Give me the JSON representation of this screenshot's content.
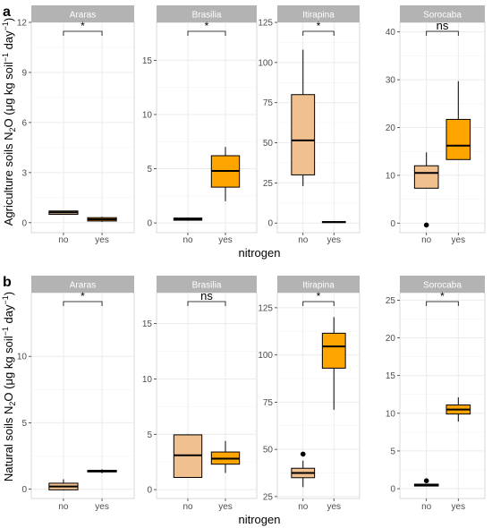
{
  "figure": {
    "x_title": "nitrogen",
    "fill_colors": {
      "no": "#f0c08f",
      "yes": "#ffa500"
    },
    "strip_color": "#b3b3b3",
    "grid_color": "#ebebeb"
  },
  "chart_data": [
    {
      "type": "box",
      "panel_label": "a",
      "ylabel_prefix": "Agriculture soils N",
      "ylabel_unit_text": " (μg kg soil",
      "ylabel_day": " day",
      "xlabel": "nitrogen",
      "categories": [
        "no",
        "yes"
      ],
      "facets": [
        {
          "name": "Araras",
          "ylim": [
            -0.6,
            12
          ],
          "yticks": [
            0,
            3,
            6,
            9,
            12
          ],
          "ytick_labels": [
            "0",
            "3",
            "6",
            "9",
            "12"
          ],
          "sig": "*",
          "boxes": [
            {
              "category": "no",
              "q1": 0.5,
              "median": 0.62,
              "q3": 0.7,
              "whisker_low": 0.5,
              "whisker_high": 0.7,
              "outliers": []
            },
            {
              "category": "yes",
              "q1": 0.1,
              "median": 0.2,
              "q3": 0.3,
              "whisker_low": 0.05,
              "whisker_high": 0.35,
              "outliers": []
            }
          ]
        },
        {
          "name": "Brasilia",
          "ylim": [
            -0.9,
            18.5
          ],
          "yticks": [
            0,
            5,
            10,
            15
          ],
          "ytick_labels": [
            "0",
            "5",
            "10",
            "15"
          ],
          "sig": "*",
          "boxes": [
            {
              "category": "no",
              "q1": 0.25,
              "median": 0.35,
              "q3": 0.45,
              "whisker_low": 0.2,
              "whisker_high": 0.5,
              "outliers": []
            },
            {
              "category": "yes",
              "q1": 3.3,
              "median": 4.8,
              "q3": 6.2,
              "whisker_low": 2.0,
              "whisker_high": 7.0,
              "outliers": []
            }
          ]
        },
        {
          "name": "Itirapina",
          "ylim": [
            -6,
            125
          ],
          "yticks": [
            0,
            25,
            50,
            75,
            100,
            125
          ],
          "ytick_labels": [
            "0",
            "25",
            "50",
            "75",
            "100",
            "125"
          ],
          "sig": "*",
          "boxes": [
            {
              "category": "no",
              "q1": 30,
              "median": 51.5,
              "q3": 80,
              "whisker_low": 23,
              "whisker_high": 108,
              "outliers": []
            },
            {
              "category": "yes",
              "q1": 0.3,
              "median": 0.6,
              "q3": 0.9,
              "whisker_low": 0.2,
              "whisker_high": 1.0,
              "outliers": []
            }
          ]
        },
        {
          "name": "Sorocaba",
          "ylim": [
            -2,
            42
          ],
          "yticks": [
            0,
            10,
            20,
            30,
            40
          ],
          "ytick_labels": [
            "0",
            "10",
            "20",
            "30",
            "40"
          ],
          "sig": "ns",
          "boxes": [
            {
              "category": "no",
              "q1": 7.3,
              "median": 10.5,
              "q3": 12,
              "whisker_low": 7.3,
              "whisker_high": 14.8,
              "outliers": [
                -0.4
              ]
            },
            {
              "category": "yes",
              "q1": 13.3,
              "median": 16.2,
              "q3": 21.7,
              "whisker_low": 13.3,
              "whisker_high": 29.7,
              "outliers": []
            }
          ]
        }
      ]
    },
    {
      "type": "box",
      "panel_label": "b",
      "ylabel_prefix": "Natural soils N",
      "ylabel_unit_text": " (μg kg soil",
      "ylabel_day": " day",
      "xlabel": "nitrogen",
      "categories": [
        "no",
        "yes"
      ],
      "facets": [
        {
          "name": "Araras",
          "ylim": [
            -0.7,
            14.8
          ],
          "yticks": [
            0,
            5,
            10
          ],
          "ytick_labels": [
            "0",
            "5",
            "10"
          ],
          "sig": "*",
          "boxes": [
            {
              "category": "no",
              "q1": -0.05,
              "median": 0.2,
              "q3": 0.45,
              "whisker_low": -0.1,
              "whisker_high": 0.75,
              "outliers": []
            },
            {
              "category": "yes",
              "q1": 1.3,
              "median": 1.35,
              "q3": 1.42,
              "whisker_low": 1.2,
              "whisker_high": 1.5,
              "outliers": []
            }
          ]
        },
        {
          "name": "Brasilia",
          "ylim": [
            -0.8,
            17.8
          ],
          "yticks": [
            0,
            5,
            10,
            15
          ],
          "ytick_labels": [
            "0",
            "5",
            "10",
            "15"
          ],
          "sig": "ns",
          "boxes": [
            {
              "category": "no",
              "q1": 1.1,
              "median": 3.1,
              "q3": 4.95,
              "whisker_low": 1.1,
              "whisker_high": 5.0,
              "outliers": []
            },
            {
              "category": "yes",
              "q1": 2.3,
              "median": 2.8,
              "q3": 3.4,
              "whisker_low": 1.5,
              "whisker_high": 4.4,
              "outliers": []
            }
          ]
        },
        {
          "name": "Itirapina",
          "ylim": [
            24,
            133
          ],
          "yticks": [
            25,
            50,
            75,
            100,
            125
          ],
          "ytick_labels": [
            "25",
            "50",
            "75",
            "100",
            "125"
          ],
          "sig": "*",
          "boxes": [
            {
              "category": "no",
              "q1": 35,
              "median": 37.5,
              "q3": 40,
              "whisker_low": 30,
              "whisker_high": 44,
              "outliers": [
                47.5
              ]
            },
            {
              "category": "yes",
              "q1": 93,
              "median": 104.5,
              "q3": 111.5,
              "whisker_low": 71,
              "whisker_high": 120,
              "outliers": []
            }
          ]
        },
        {
          "name": "Sorocaba",
          "ylim": [
            -1.3,
            26
          ],
          "yticks": [
            0,
            5,
            10,
            15,
            20,
            25
          ],
          "ytick_labels": [
            "0",
            "5",
            "10",
            "15",
            "20",
            "25"
          ],
          "sig": "*",
          "boxes": [
            {
              "category": "no",
              "q1": 0.35,
              "median": 0.45,
              "q3": 0.6,
              "whisker_low": 0.3,
              "whisker_high": 0.65,
              "outliers": [
                1.05
              ]
            },
            {
              "category": "yes",
              "q1": 9.9,
              "median": 10.5,
              "q3": 11.1,
              "whisker_low": 8.9,
              "whisker_high": 12.1,
              "outliers": []
            }
          ]
        }
      ]
    }
  ]
}
